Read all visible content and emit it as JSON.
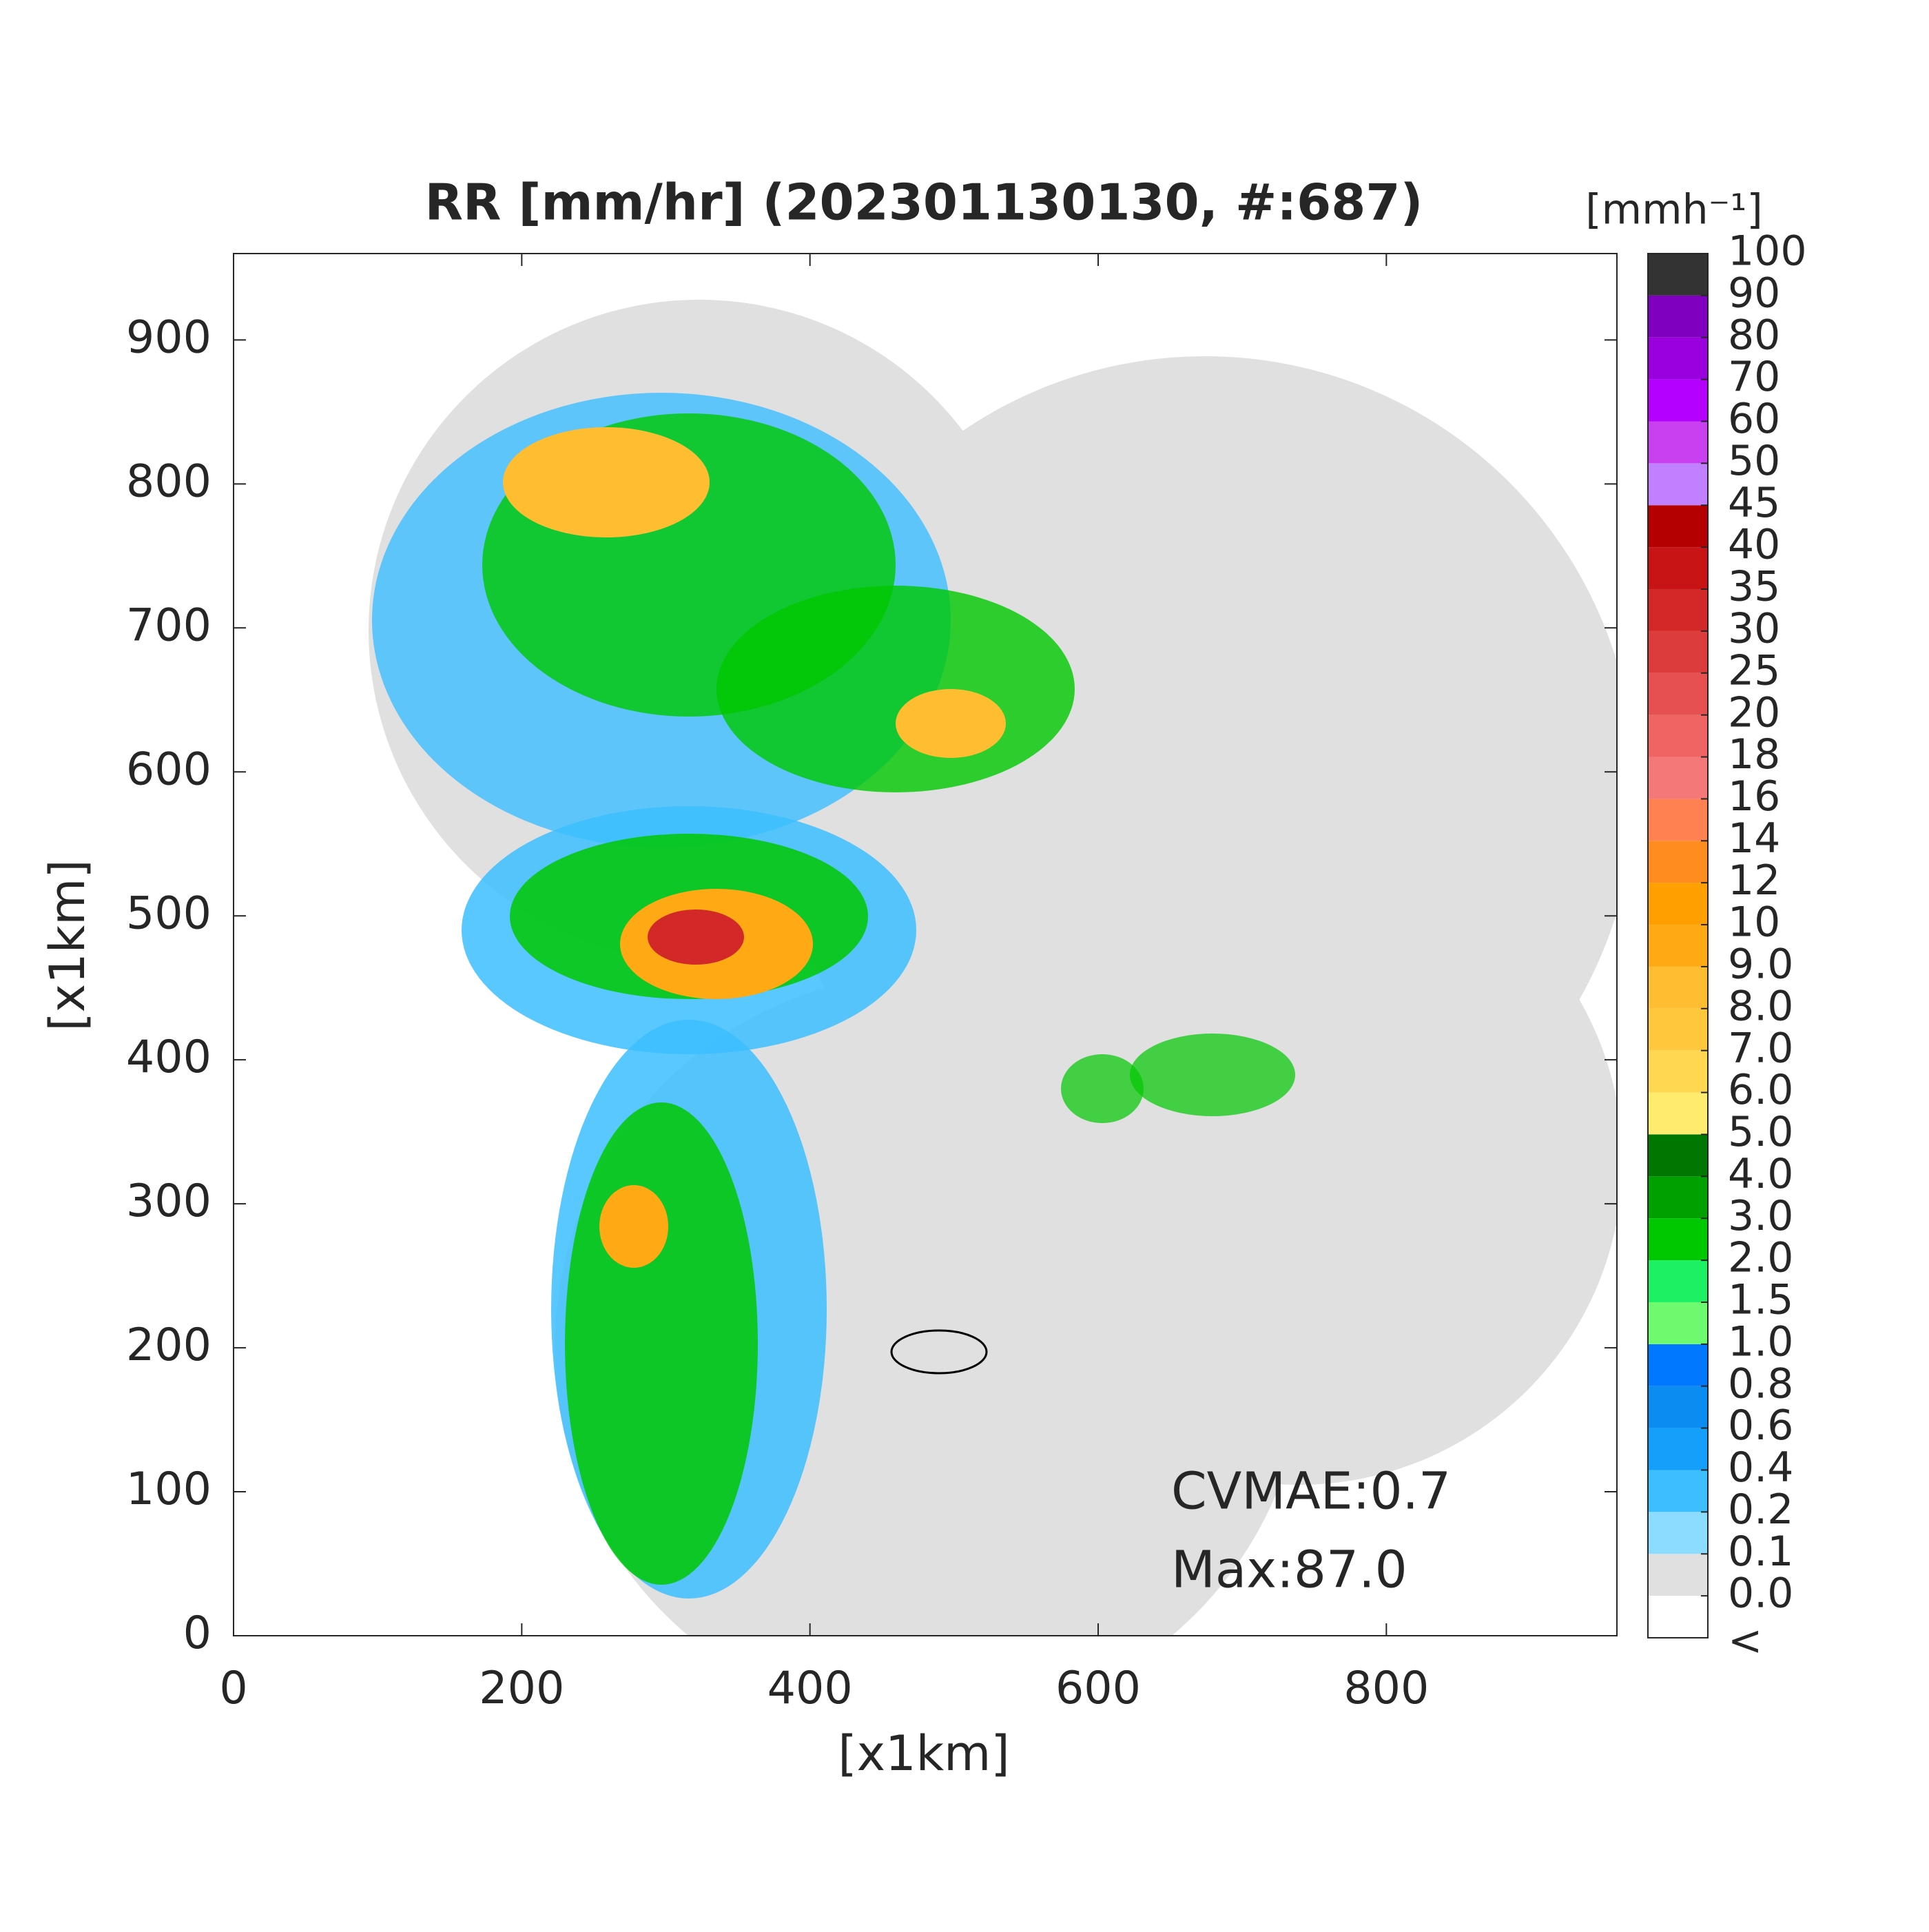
{
  "chart_data": {
    "type": "map",
    "title": "RR [mm/hr] (202301130130, #:687)",
    "x_label": "[x1km]",
    "y_label": "[x1km]",
    "xlim": [
      0,
      960
    ],
    "ylim": [
      0,
      960
    ],
    "xticks": [
      0,
      200,
      400,
      600,
      800
    ],
    "yticks": [
      0,
      100,
      200,
      300,
      400,
      500,
      600,
      700,
      800,
      900
    ],
    "annotations": [
      "CVMAE:0.7",
      "Max:87.0"
    ],
    "colorbar": {
      "title": "[mmh⁻¹]",
      "below_label": "<",
      "ticks": [
        {
          "value": 0,
          "label": "0.0"
        },
        0.1,
        0.2,
        0.4,
        0.6,
        0.8,
        {
          "value": 1,
          "label": "1.0"
        },
        1.5,
        {
          "value": 2,
          "label": "2.0"
        },
        {
          "value": 3,
          "label": "3.0"
        },
        {
          "value": 4,
          "label": "4.0"
        },
        {
          "value": 5,
          "label": "5.0"
        },
        {
          "value": 6,
          "label": "6.0"
        },
        {
          "value": 7,
          "label": "7.0"
        },
        {
          "value": 8,
          "label": "8.0"
        },
        {
          "value": 9,
          "label": "9.0"
        },
        10,
        12,
        14,
        16,
        18,
        20,
        25,
        30,
        35,
        40,
        45,
        50,
        60,
        70,
        80,
        90,
        100
      ],
      "colors": [
        "#ffffff",
        "#e0e0e0",
        "#8cdcff",
        "#3cbeff",
        "#14a0fa",
        "#0a8cf0",
        "#0078ff",
        "#6efa6e",
        "#1ef064",
        "#00c800",
        "#00a000",
        "#007800",
        "#ffeb6e",
        "#ffd750",
        "#ffc83c",
        "#ffbe32",
        "#ffaa14",
        "#ffa000",
        "#ff8c1e",
        "#ff8050",
        "#f47878",
        "#f06464",
        "#e65050",
        "#dc3c3c",
        "#d22828",
        "#c81414",
        "#b40000",
        "#c080ff",
        "#c940f0",
        "#b300ff",
        "#9900dd",
        "#7f00bf",
        "#333333"
      ]
    }
  }
}
